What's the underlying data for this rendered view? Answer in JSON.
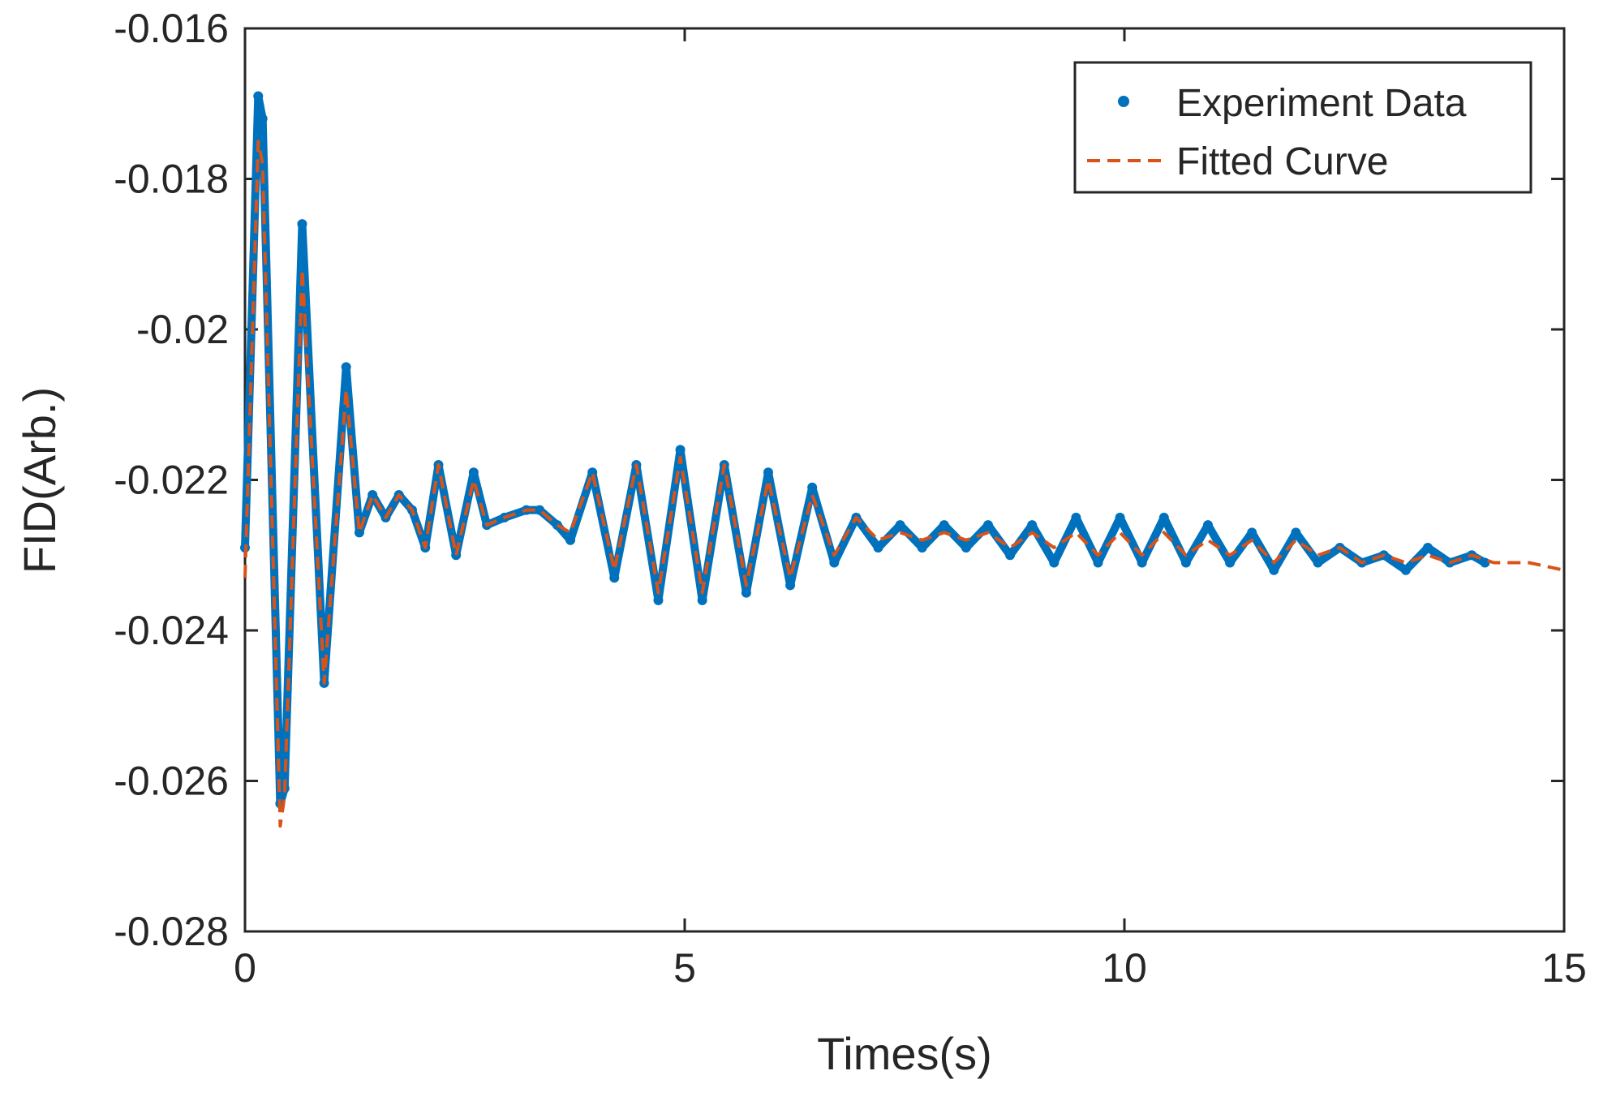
{
  "chart_data": {
    "type": "line",
    "xlabel": "Times(s)",
    "ylabel": "FID(Arb.)",
    "xlim": [
      0,
      15
    ],
    "ylim": [
      -0.028,
      -0.016
    ],
    "xticks": [
      0,
      5,
      10,
      15
    ],
    "xtick_labels": [
      "0",
      "5",
      "10",
      "15"
    ],
    "yticks": [
      -0.028,
      -0.026,
      -0.024,
      -0.022,
      -0.02,
      -0.018,
      -0.016
    ],
    "ytick_labels": [
      "-0.028",
      "-0.026",
      "-0.024",
      "-0.022",
      "-0.02",
      "-0.018",
      "-0.016"
    ],
    "grid": false,
    "legend_position": "top-right",
    "series": [
      {
        "name": "Experiment Data",
        "style": "dots",
        "color": "#0072BD",
        "x": [
          0.0,
          0.15,
          0.2,
          0.4,
          0.45,
          0.65,
          0.9,
          1.15,
          1.3,
          1.45,
          1.6,
          1.75,
          1.9,
          2.05,
          2.2,
          2.4,
          2.6,
          2.75,
          2.95,
          3.2,
          3.35,
          3.55,
          3.7,
          3.95,
          4.2,
          4.45,
          4.7,
          4.95,
          5.2,
          5.45,
          5.7,
          5.95,
          6.2,
          6.45,
          6.7,
          6.95,
          7.2,
          7.45,
          7.7,
          7.95,
          8.2,
          8.45,
          8.7,
          8.95,
          9.2,
          9.45,
          9.7,
          9.95,
          10.2,
          10.45,
          10.7,
          10.95,
          11.2,
          11.45,
          11.7,
          11.95,
          12.2,
          12.45,
          12.7,
          12.95,
          13.2,
          13.45,
          13.7,
          13.95,
          14.1
        ],
        "values": [
          -0.0229,
          -0.0169,
          -0.0172,
          -0.0263,
          -0.0261,
          -0.0186,
          -0.0247,
          -0.0205,
          -0.0227,
          -0.0222,
          -0.0225,
          -0.0222,
          -0.0224,
          -0.0229,
          -0.0218,
          -0.023,
          -0.0219,
          -0.0226,
          -0.0225,
          -0.0224,
          -0.0224,
          -0.0226,
          -0.0228,
          -0.0219,
          -0.0233,
          -0.0218,
          -0.0236,
          -0.0216,
          -0.0236,
          -0.0218,
          -0.0235,
          -0.0219,
          -0.0234,
          -0.0221,
          -0.0231,
          -0.0225,
          -0.0229,
          -0.0226,
          -0.0229,
          -0.0226,
          -0.0229,
          -0.0226,
          -0.023,
          -0.0226,
          -0.0231,
          -0.0225,
          -0.0231,
          -0.0225,
          -0.0231,
          -0.0225,
          -0.0231,
          -0.0226,
          -0.0231,
          -0.0227,
          -0.0232,
          -0.0227,
          -0.0231,
          -0.0229,
          -0.0231,
          -0.023,
          -0.0232,
          -0.0229,
          -0.0231,
          -0.023,
          -0.0231
        ]
      },
      {
        "name": "Fitted Curve",
        "style": "dashed",
        "color": "#D95319",
        "x": [
          0.0,
          0.15,
          0.2,
          0.4,
          0.45,
          0.65,
          0.9,
          1.15,
          1.3,
          1.45,
          1.6,
          1.75,
          1.9,
          2.05,
          2.2,
          2.4,
          2.6,
          2.75,
          2.95,
          3.2,
          3.35,
          3.55,
          3.7,
          3.95,
          4.2,
          4.45,
          4.7,
          4.95,
          5.2,
          5.45,
          5.7,
          5.95,
          6.2,
          6.45,
          6.7,
          6.95,
          7.2,
          7.45,
          7.7,
          7.95,
          8.2,
          8.45,
          8.7,
          8.95,
          9.2,
          9.45,
          9.7,
          9.95,
          10.2,
          10.45,
          10.7,
          10.95,
          11.2,
          11.45,
          11.7,
          11.95,
          12.2,
          12.45,
          12.7,
          12.95,
          13.2,
          13.45,
          13.7,
          13.95,
          14.2,
          14.6,
          15.0
        ],
        "values": [
          -0.0233,
          -0.0175,
          -0.0178,
          -0.0266,
          -0.0262,
          -0.0192,
          -0.0247,
          -0.0208,
          -0.0227,
          -0.0222,
          -0.0225,
          -0.0222,
          -0.0224,
          -0.0229,
          -0.0218,
          -0.023,
          -0.022,
          -0.0226,
          -0.0225,
          -0.0224,
          -0.0224,
          -0.0226,
          -0.0227,
          -0.0219,
          -0.0232,
          -0.0218,
          -0.0235,
          -0.0217,
          -0.0235,
          -0.0218,
          -0.0234,
          -0.022,
          -0.0233,
          -0.0222,
          -0.023,
          -0.0225,
          -0.0228,
          -0.0227,
          -0.0228,
          -0.0227,
          -0.0228,
          -0.0227,
          -0.0229,
          -0.0227,
          -0.0229,
          -0.0227,
          -0.023,
          -0.0227,
          -0.023,
          -0.0227,
          -0.023,
          -0.0228,
          -0.023,
          -0.0228,
          -0.0231,
          -0.0228,
          -0.023,
          -0.0229,
          -0.0231,
          -0.023,
          -0.0231,
          -0.023,
          -0.0231,
          -0.023,
          -0.0231,
          -0.0231,
          -0.0232
        ]
      }
    ]
  }
}
